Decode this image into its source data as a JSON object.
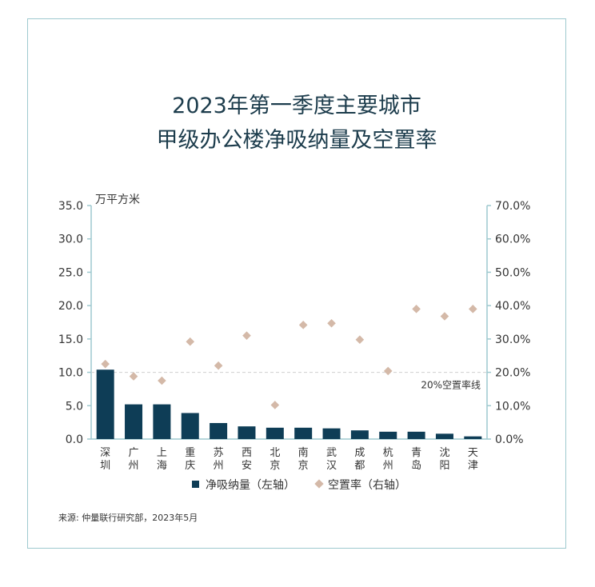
{
  "chart_data": {
    "type": "bar",
    "title_lines": [
      "2023年第一季度主要城市",
      "甲级办公楼净吸纳量及空置率"
    ],
    "left_unit": "万平方米",
    "categories": [
      [
        "深",
        "圳"
      ],
      [
        "广",
        "州"
      ],
      [
        "上",
        "海"
      ],
      [
        "重",
        "庆"
      ],
      [
        "苏",
        "州"
      ],
      [
        "西",
        "安"
      ],
      [
        "北",
        "京"
      ],
      [
        "南",
        "京"
      ],
      [
        "武",
        "汉"
      ],
      [
        "成",
        "都"
      ],
      [
        "杭",
        "州"
      ],
      [
        "青",
        "岛"
      ],
      [
        "沈",
        "阳"
      ],
      [
        "天",
        "津"
      ]
    ],
    "series": [
      {
        "name": "净吸纳量（左轴）",
        "kind": "bar",
        "axis": "left",
        "color": "#0e3d56",
        "values": [
          10.4,
          5.2,
          5.2,
          3.9,
          2.4,
          1.9,
          1.7,
          1.7,
          1.6,
          1.3,
          1.1,
          1.1,
          0.8,
          0.4
        ]
      },
      {
        "name": "空置率（右轴）",
        "kind": "scatter",
        "axis": "right",
        "color": "#d4b9a8",
        "values": [
          22.5,
          18.8,
          17.5,
          29.2,
          22.0,
          31.0,
          10.2,
          34.2,
          34.7,
          29.8,
          20.4,
          39.0,
          36.8,
          39.0
        ]
      }
    ],
    "left_axis": {
      "min": 0,
      "max": 35,
      "ticks": [
        "0.0",
        "5.0",
        "10.0",
        "15.0",
        "20.0",
        "25.0",
        "30.0",
        "35.0"
      ]
    },
    "right_axis": {
      "min": 0,
      "max": 70,
      "ticks": [
        "0.0%",
        "10.0%",
        "20.0%",
        "30.0%",
        "40.0%",
        "50.0%",
        "60.0%",
        "70.0%"
      ]
    },
    "reference_line": {
      "value": 20,
      "axis": "right",
      "label": "20%空置率线",
      "color": "#cfcfcf"
    },
    "legend_position": "bottom",
    "grid": false
  },
  "footer": {
    "source": "来源: 仲量联行研究部，2023年5月"
  }
}
